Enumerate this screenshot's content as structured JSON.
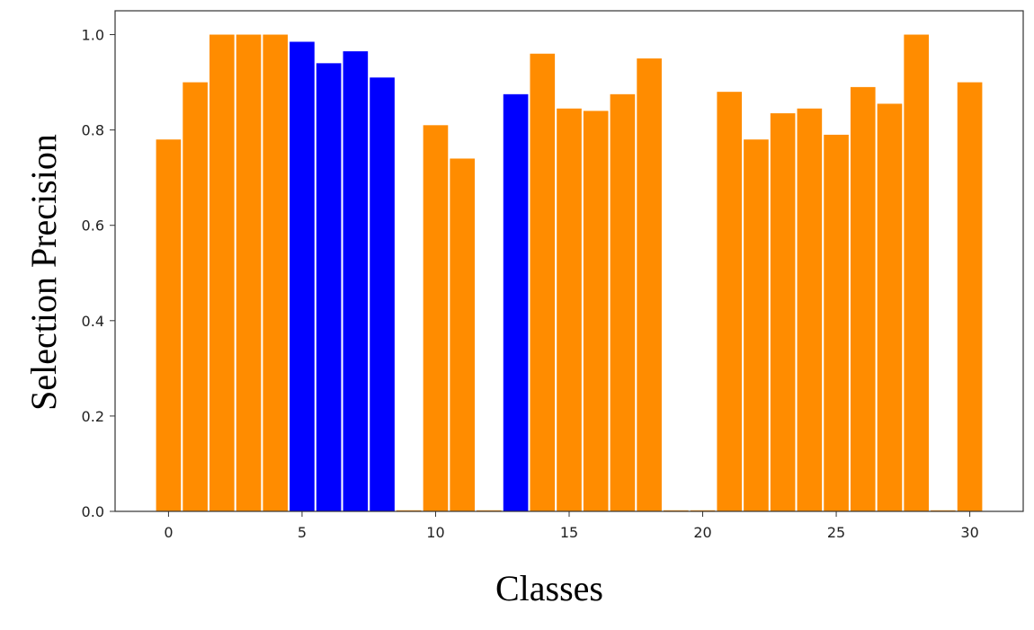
{
  "chart_data": {
    "type": "bar",
    "x": [
      0,
      1,
      2,
      3,
      4,
      5,
      6,
      7,
      8,
      9,
      10,
      11,
      12,
      13,
      14,
      15,
      16,
      17,
      18,
      19,
      20,
      21,
      22,
      23,
      24,
      25,
      26,
      27,
      28,
      29,
      30
    ],
    "values": [
      0.78,
      0.9,
      1.0,
      1.0,
      1.0,
      0.985,
      0.94,
      0.965,
      0.91,
      0.0,
      0.81,
      0.74,
      0.0,
      0.875,
      0.96,
      0.845,
      0.84,
      0.875,
      0.95,
      0.0,
      0.0,
      0.88,
      0.78,
      0.835,
      0.845,
      0.79,
      0.89,
      0.855,
      1.0,
      0.0,
      0.9
    ],
    "bar_colors": [
      "#FF8C00",
      "#FF8C00",
      "#FF8C00",
      "#FF8C00",
      "#FF8C00",
      "#0000FF",
      "#0000FF",
      "#0000FF",
      "#0000FF",
      "#FF8C00",
      "#FF8C00",
      "#FF8C00",
      "#FF8C00",
      "#0000FF",
      "#FF8C00",
      "#FF8C00",
      "#FF8C00",
      "#FF8C00",
      "#FF8C00",
      "#FF8C00",
      "#FF8C00",
      "#FF8C00",
      "#FF8C00",
      "#FF8C00",
      "#FF8C00",
      "#FF8C00",
      "#FF8C00",
      "#FF8C00",
      "#FF8C00",
      "#FF8C00",
      "#FF8C00"
    ],
    "xlabel": "Classes",
    "ylabel": "Selection Precision",
    "xlim": [
      -2,
      32
    ],
    "ylim": [
      0,
      1.05
    ],
    "xticks": [
      0,
      5,
      10,
      15,
      20,
      25,
      30
    ],
    "xtick_labels": [
      "0",
      "5",
      "10",
      "15",
      "20",
      "25",
      "30"
    ],
    "yticks": [
      0.0,
      0.2,
      0.4,
      0.6,
      0.8,
      1.0
    ],
    "ytick_labels": [
      "0.0",
      "0.2",
      "0.4",
      "0.6",
      "0.8",
      "1.0"
    ],
    "grid": false,
    "legend": "none"
  }
}
